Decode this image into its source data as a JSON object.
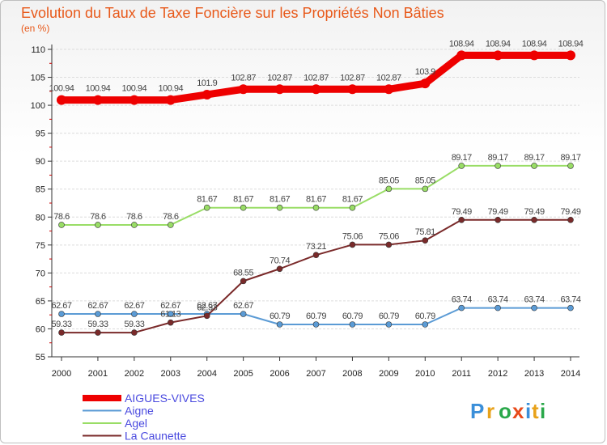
{
  "chart_data": {
    "type": "line",
    "title": "Evolution du Taux de Taxe Foncière sur les Propriétés Non Bâties",
    "ylabel": "(en %)",
    "xlabel": "",
    "categories": [
      "2000",
      "2001",
      "2002",
      "2003",
      "2004",
      "2005",
      "2006",
      "2007",
      "2008",
      "2009",
      "2010",
      "2011",
      "2012",
      "2013",
      "2014"
    ],
    "ylim": [
      55,
      110
    ],
    "yticks": [
      55,
      60,
      65,
      70,
      75,
      80,
      85,
      90,
      95,
      100,
      105,
      110
    ],
    "series": [
      {
        "name": "AIGUES-VIVES",
        "color": "#ee0000",
        "values": [
          100.94,
          100.94,
          100.94,
          100.94,
          101.9,
          102.87,
          102.87,
          102.87,
          102.87,
          102.87,
          103.9,
          108.94,
          108.94,
          108.94,
          108.94
        ],
        "labels": [
          "100.94",
          "100.94",
          "100.94",
          "100.94",
          "101.9",
          "102.87",
          "102.87",
          "102.87",
          "102.87",
          "102.87",
          "103.9",
          "108.94",
          "108.94",
          "108.94",
          "108.94"
        ]
      },
      {
        "name": "Aigne",
        "color": "#5b9bd5",
        "values": [
          62.67,
          62.67,
          62.67,
          62.67,
          62.67,
          62.67,
          60.79,
          60.79,
          60.79,
          60.79,
          60.79,
          63.74,
          63.74,
          63.74,
          63.74
        ],
        "labels": [
          "62.67",
          "62.67",
          "62.67",
          "62.67",
          "62.67",
          "62.67",
          "60.79",
          "60.79",
          "60.79",
          "60.79",
          "60.79",
          "63.74",
          "63.74",
          "63.74",
          "63.74"
        ]
      },
      {
        "name": "Agel",
        "color": "#99dd66",
        "values": [
          78.6,
          78.6,
          78.6,
          78.6,
          81.67,
          81.67,
          81.67,
          81.67,
          81.67,
          85.05,
          85.05,
          89.17,
          89.17,
          89.17,
          89.17
        ],
        "labels": [
          "78.6",
          "78.6",
          "78.6",
          "78.6",
          "81.67",
          "81.67",
          "81.67",
          "81.67",
          "81.67",
          "85.05",
          "85.05",
          "89.17",
          "89.17",
          "89.17",
          "89.17"
        ]
      },
      {
        "name": "La Caunette",
        "color": "#7a2a2a",
        "values": [
          59.33,
          59.33,
          59.33,
          61.13,
          62.33,
          68.55,
          70.74,
          73.21,
          75.06,
          75.06,
          75.81,
          79.49,
          79.49,
          79.49,
          79.49
        ],
        "labels": [
          "59.33",
          "59.33",
          "59.33",
          "61.13",
          "62.33",
          "68.55",
          "70.74",
          "73.21",
          "75.06",
          "75.06",
          "75.81",
          "79.49",
          "79.49",
          "79.49",
          "79.49"
        ]
      }
    ]
  },
  "logo": {
    "text": "Proxiti",
    "colors": [
      "#3b8fd9",
      "#e8a21a",
      "#2aa84a",
      "#e84a1a",
      "#3b8fd9",
      "#e8a21a",
      "#2aa84a"
    ]
  }
}
